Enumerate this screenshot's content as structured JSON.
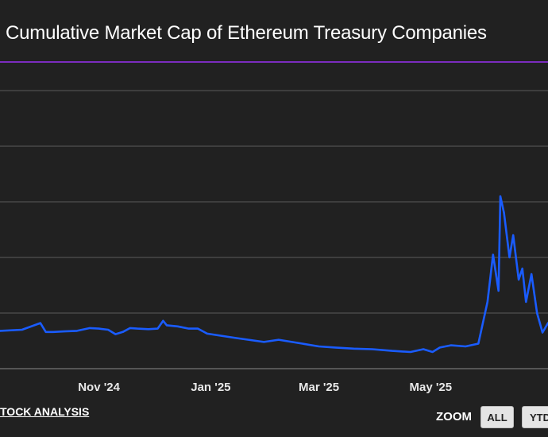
{
  "title": "Cumulative Market Cap of Ethereum Treasury Companies",
  "source_link": "TOCK ANALYSIS",
  "zoom": {
    "label": "ZOOM",
    "buttons": [
      "ALL",
      "YTD"
    ]
  },
  "colors": {
    "background": "#212121",
    "line": "#1a5cff",
    "accent_rule": "#7b2cbf",
    "grid": "#5a5a5a"
  },
  "chart_data": {
    "type": "line",
    "title": "Cumulative Market Cap of Ethereum Treasury Companies",
    "xlabel": "",
    "ylabel": "",
    "x_ticks": [
      "Nov '24",
      "Jan '25",
      "Mar '25",
      "May '25"
    ],
    "x_range": [
      "2024-09-08",
      "2025-07-04"
    ],
    "grid": true,
    "series": [
      {
        "x": [
          "2024-09-08",
          "2024-09-20",
          "2024-09-30",
          "2024-10-03",
          "2024-10-07",
          "2024-10-13",
          "2024-10-20",
          "2024-10-27",
          "2024-11-01",
          "2024-11-06",
          "2024-11-10",
          "2024-11-14",
          "2024-11-18",
          "2024-11-22",
          "2024-11-28",
          "2024-12-03",
          "2024-12-06",
          "2024-12-08",
          "2024-12-14",
          "2024-12-20",
          "2024-12-25",
          "2024-12-30",
          "2025-01-05",
          "2025-01-15",
          "2025-01-30",
          "2025-02-07",
          "2025-02-20",
          "2025-03-01",
          "2025-03-10",
          "2025-03-20",
          "2025-03-30",
          "2025-04-10",
          "2025-04-20",
          "2025-04-27",
          "2025-05-02",
          "2025-05-06",
          "2025-05-12",
          "2025-05-20",
          "2025-05-27",
          "2025-06-01",
          "2025-06-04",
          "2025-06-07",
          "2025-06-08",
          "2025-06-10",
          "2025-06-13",
          "2025-06-15",
          "2025-06-18",
          "2025-06-20",
          "2025-06-22",
          "2025-06-25",
          "2025-06-28",
          "2025-07-01",
          "2025-07-04"
        ],
        "y": [
          0.68,
          0.7,
          0.82,
          0.66,
          0.66,
          0.67,
          0.68,
          0.73,
          0.72,
          0.7,
          0.62,
          0.66,
          0.73,
          0.72,
          0.71,
          0.72,
          0.86,
          0.78,
          0.76,
          0.72,
          0.72,
          0.63,
          0.6,
          0.55,
          0.48,
          0.52,
          0.45,
          0.4,
          0.38,
          0.36,
          0.35,
          0.32,
          0.3,
          0.35,
          0.3,
          0.38,
          0.42,
          0.4,
          0.45,
          1.2,
          2.05,
          1.4,
          3.1,
          2.8,
          2.0,
          2.4,
          1.6,
          1.8,
          1.2,
          1.7,
          1.0,
          0.65,
          0.82
        ]
      }
    ]
  }
}
